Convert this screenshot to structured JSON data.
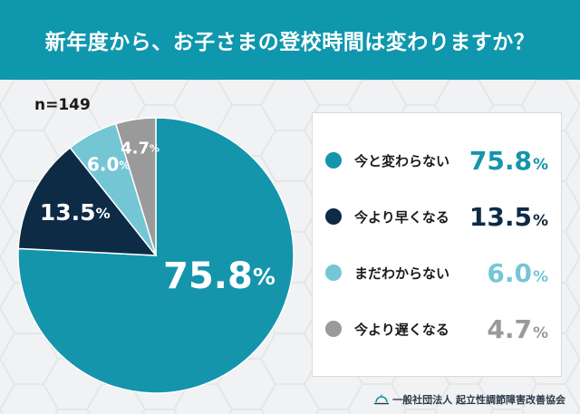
{
  "header": {
    "title": "新年度から、お子さまの登校時間は変わりますか？"
  },
  "sample": {
    "label": "n=149"
  },
  "chart_data": {
    "type": "pie",
    "categories": [
      "今と変わらない",
      "今より早くなる",
      "まだわからない",
      "今より遅くなる"
    ],
    "values": [
      75.8,
      13.5,
      6.0,
      4.7
    ],
    "labels": [
      "75.8",
      "13.5",
      "6.0",
      "4.7"
    ],
    "unit": "%",
    "colors": [
      "#1495ac",
      "#0d2b45",
      "#74c6d5",
      "#9a9a9a"
    ],
    "start_angle": "12 o'clock, clockwise",
    "legend_position": "right"
  },
  "legend": {
    "items": [
      {
        "label": "今と変わらない",
        "value": "75.8",
        "unit": "%",
        "color": "#1495ac"
      },
      {
        "label": "今より早くなる",
        "value": "13.5",
        "unit": "%",
        "color": "#0d2b45"
      },
      {
        "label": "まだわからない",
        "value": "6.0",
        "unit": "%",
        "color": "#74c6d5"
      },
      {
        "label": "今より遅くなる",
        "value": "4.7",
        "unit": "%",
        "color": "#9a9a9a"
      }
    ]
  },
  "footer": {
    "org": "一般社団法人 起立性調節障害改善協会"
  }
}
